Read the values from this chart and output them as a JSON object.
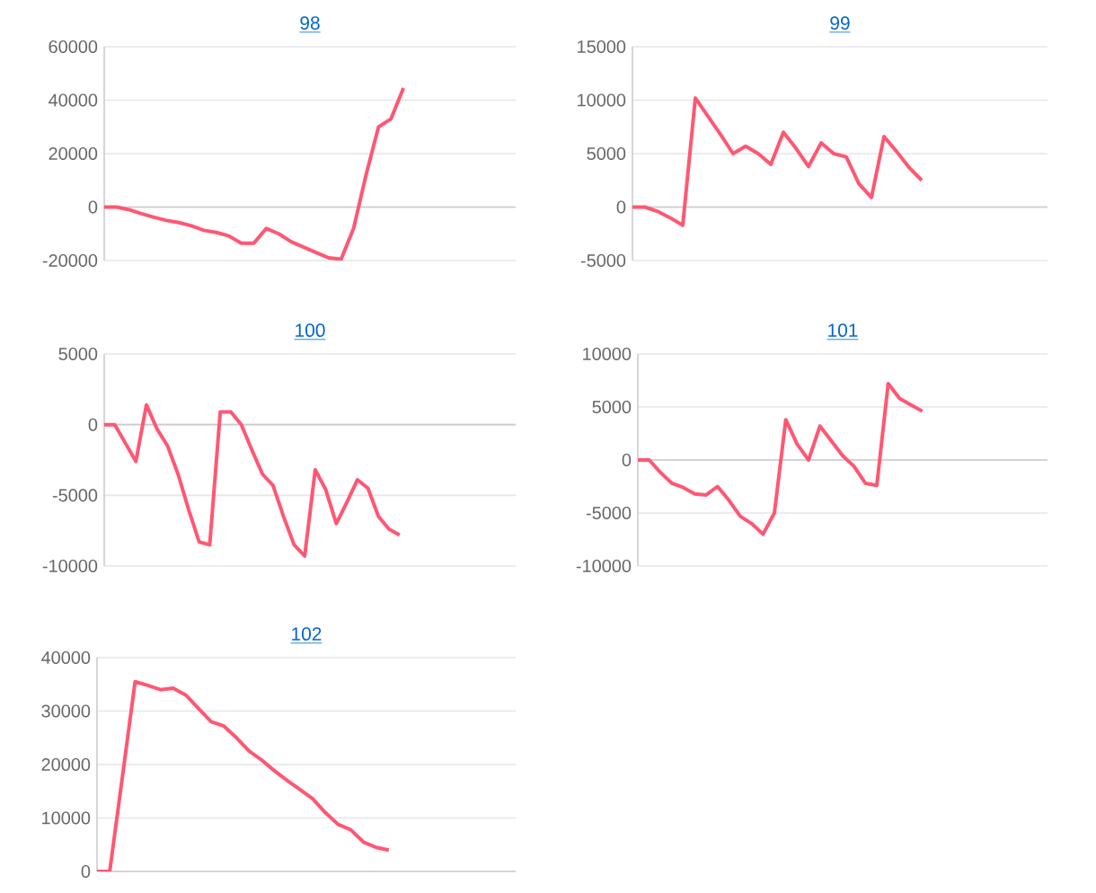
{
  "chart_data": [
    {
      "type": "line",
      "title": "98",
      "color": "#ff5773",
      "grid": "y",
      "tick_labels": "y",
      "ylim": [
        -20000,
        60000
      ],
      "yticks": [
        -20000,
        0,
        20000,
        40000,
        60000
      ],
      "categories": [
        null,
        null,
        null,
        null,
        null,
        null,
        null,
        null,
        null,
        null,
        null,
        null,
        null,
        null,
        null,
        null,
        null,
        null,
        null,
        null,
        null,
        null,
        null,
        null,
        null,
        null,
        null,
        null,
        null,
        null,
        null,
        null,
        null,
        null
      ],
      "values": [
        0,
        0,
        -1000,
        -2500,
        -3800,
        -5000,
        -5800,
        -7000,
        -8700,
        -9500,
        -10800,
        -13500,
        -13500,
        -8000,
        -10000,
        -13000,
        -15000,
        -17000,
        -19000,
        -19500,
        -8000,
        12000,
        30000,
        33000,
        44500,
        null,
        null,
        null,
        null,
        null,
        null,
        null,
        null,
        null
      ]
    },
    {
      "type": "line",
      "title": "99",
      "color": "#ff5773",
      "grid": "y",
      "tick_labels": "y",
      "ylim": [
        -5000,
        15000
      ],
      "yticks": [
        -5000,
        0,
        5000,
        10000,
        15000
      ],
      "categories": [
        null,
        null,
        null,
        null,
        null,
        null,
        null,
        null,
        null,
        null,
        null,
        null,
        null,
        null,
        null,
        null,
        null,
        null,
        null,
        null,
        null,
        null,
        null,
        null,
        null,
        null,
        null,
        null,
        null,
        null,
        null,
        null,
        null,
        null
      ],
      "values": [
        0,
        0,
        -400,
        -1000,
        -1700,
        10200,
        8500,
        6800,
        5000,
        5700,
        5000,
        4000,
        7000,
        5500,
        3800,
        6000,
        5000,
        4700,
        2200,
        900,
        6600,
        5200,
        3700,
        2500,
        null,
        null,
        null,
        null,
        null,
        null,
        null,
        null,
        null,
        null
      ]
    },
    {
      "type": "line",
      "title": "100",
      "color": "#ff5773",
      "grid": "y",
      "tick_labels": "y",
      "ylim": [
        -10000,
        5000
      ],
      "yticks": [
        -10000,
        -5000,
        0,
        5000
      ],
      "categories": [
        null,
        null,
        null,
        null,
        null,
        null,
        null,
        null,
        null,
        null,
        null,
        null,
        null,
        null,
        null,
        null,
        null,
        null,
        null,
        null,
        null,
        null,
        null,
        null,
        null,
        null,
        null,
        null,
        null,
        null,
        null,
        null,
        null,
        null,
        null,
        null,
        null,
        null,
        null,
        null
      ],
      "values": [
        0,
        0,
        -1300,
        -2600,
        1400,
        -300,
        -1500,
        -3500,
        -6000,
        -8300,
        -8500,
        900,
        900,
        0,
        -1800,
        -3500,
        -4300,
        -6500,
        -8500,
        -9300,
        -3200,
        -4600,
        -7000,
        -5500,
        -3900,
        -4500,
        -6500,
        -7400,
        -7800,
        null,
        null,
        null,
        null,
        null,
        null,
        null,
        null,
        null,
        null,
        null
      ]
    },
    {
      "type": "line",
      "title": "101",
      "color": "#ff5773",
      "grid": "y",
      "tick_labels": "y",
      "ylim": [
        -10000,
        10000
      ],
      "yticks": [
        -10000,
        -5000,
        0,
        5000,
        10000
      ],
      "categories": [
        null,
        null,
        null,
        null,
        null,
        null,
        null,
        null,
        null,
        null,
        null,
        null,
        null,
        null,
        null,
        null,
        null,
        null,
        null,
        null,
        null,
        null,
        null,
        null,
        null,
        null,
        null,
        null,
        null,
        null,
        null,
        null,
        null,
        null,
        null,
        null,
        null
      ],
      "values": [
        0,
        0,
        -1200,
        -2200,
        -2600,
        -3200,
        -3300,
        -2500,
        -3800,
        -5300,
        -6000,
        -7000,
        -5000,
        3800,
        1500,
        0,
        3200,
        1800,
        400,
        -600,
        -2200,
        -2400,
        7200,
        5800,
        5200,
        4600,
        null,
        null,
        null,
        null,
        null,
        null,
        null,
        null,
        null,
        null,
        null
      ]
    },
    {
      "type": "line",
      "title": "102",
      "color": "#ff5773",
      "grid": "y",
      "tick_labels": "y",
      "ylim": [
        0,
        40000
      ],
      "yticks": [
        0,
        10000,
        20000,
        30000,
        40000
      ],
      "categories": [
        null,
        null,
        null,
        null,
        null,
        null,
        null,
        null,
        null,
        null,
        null,
        null,
        null,
        null,
        null,
        null,
        null,
        null,
        null,
        null,
        null,
        null,
        null,
        null,
        null,
        null,
        null,
        null,
        null,
        null,
        null,
        null,
        null,
        null
      ],
      "values": [
        0,
        0,
        17700,
        35500,
        34800,
        34000,
        34300,
        33000,
        30500,
        28000,
        27200,
        25000,
        22500,
        20800,
        18800,
        17000,
        15300,
        13600,
        11000,
        8800,
        7800,
        5500,
        4500,
        4000,
        null,
        null,
        null,
        null,
        null,
        null,
        null,
        null,
        null,
        null
      ]
    }
  ]
}
